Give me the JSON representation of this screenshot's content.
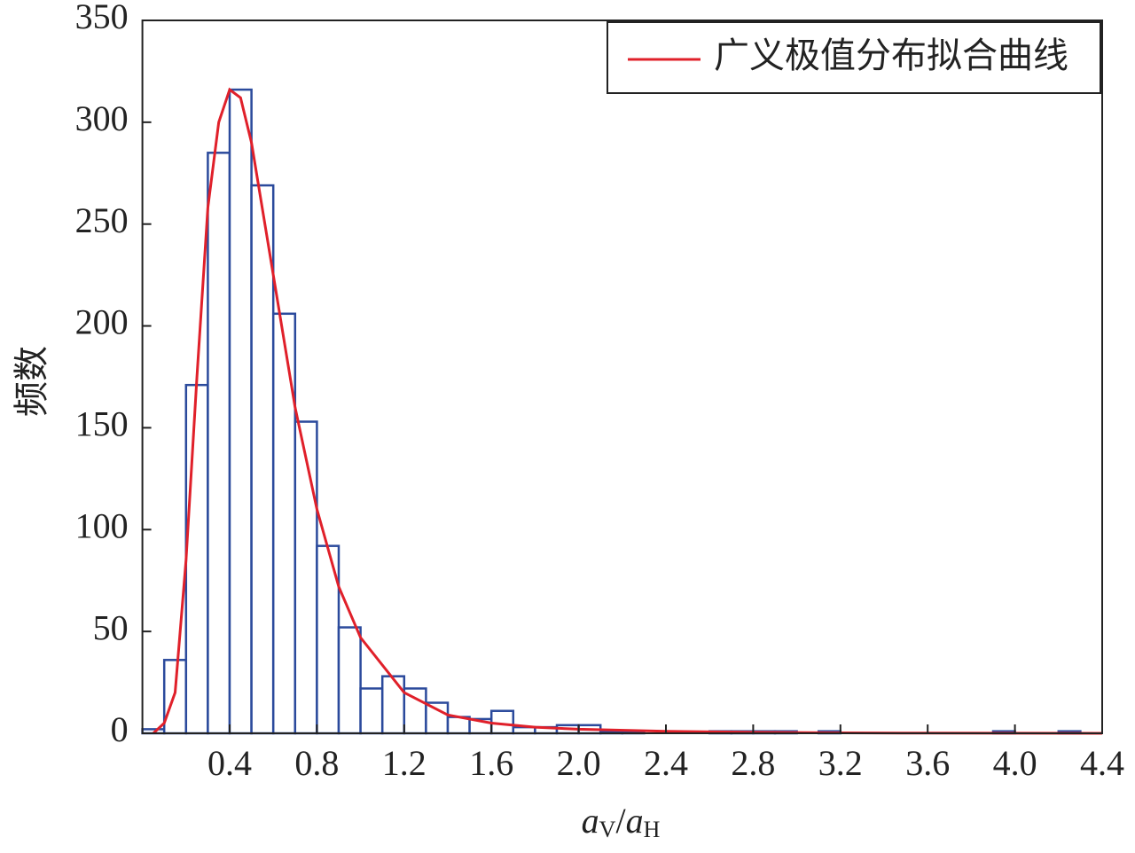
{
  "chart_data": {
    "type": "histogram",
    "y_label": "频数",
    "x_label_parts": [
      "a",
      "V",
      "/",
      "a",
      "H"
    ],
    "bins": [
      0,
      0.1,
      0.2,
      0.3,
      0.4,
      0.5,
      0.6,
      0.7,
      0.8,
      0.9,
      1.0,
      1.1,
      1.2,
      1.3,
      1.4,
      1.5,
      1.6,
      1.7,
      1.8,
      1.9,
      2.0,
      2.1,
      2.2,
      2.3,
      2.4,
      2.5,
      2.6,
      2.7,
      2.8,
      2.9,
      3.0,
      3.1,
      3.2,
      3.3,
      3.4,
      3.5,
      3.6,
      3.7,
      3.8,
      3.9,
      4.0,
      4.1,
      4.2,
      4.3,
      4.4
    ],
    "values": [
      2,
      36,
      171,
      285,
      316,
      269,
      206,
      153,
      92,
      52,
      22,
      28,
      22,
      15,
      8,
      7,
      11,
      3,
      3,
      4,
      4,
      1,
      1,
      0,
      0,
      0,
      1,
      1,
      1,
      1,
      0,
      1,
      0,
      0,
      0,
      0,
      0,
      0,
      0,
      1,
      0,
      0,
      1,
      0
    ],
    "color": "#2b4a9c",
    "fit": {
      "name": "广义极值分布拟合曲线",
      "color": "#e0202a",
      "x": [
        0.05,
        0.1,
        0.15,
        0.2,
        0.25,
        0.3,
        0.35,
        0.4,
        0.45,
        0.5,
        0.6,
        0.7,
        0.8,
        0.9,
        1.0,
        1.2,
        1.4,
        1.6,
        1.8,
        2.0,
        2.4,
        2.8,
        3.2,
        3.6,
        4.0,
        4.4
      ],
      "values": [
        0,
        5,
        20,
        85,
        175,
        258,
        300,
        316,
        312,
        290,
        225,
        160,
        110,
        72,
        47,
        20,
        9,
        5,
        3,
        2,
        1,
        0.5,
        0.2,
        0.1,
        0.05,
        0
      ]
    },
    "xlim": [
      0,
      4.4
    ],
    "ylim": [
      0,
      350
    ],
    "xticks": [
      0.4,
      0.8,
      1.2,
      1.6,
      {
        "value": 2,
        "label": "2.0"
      },
      2.4,
      2.8,
      3.2,
      3.6,
      {
        "value": 4,
        "label": "4.0"
      },
      4.4
    ],
    "yticks": [
      0,
      50,
      100,
      150,
      200,
      250,
      300,
      350
    ],
    "legend": "upper right",
    "grid": false
  }
}
